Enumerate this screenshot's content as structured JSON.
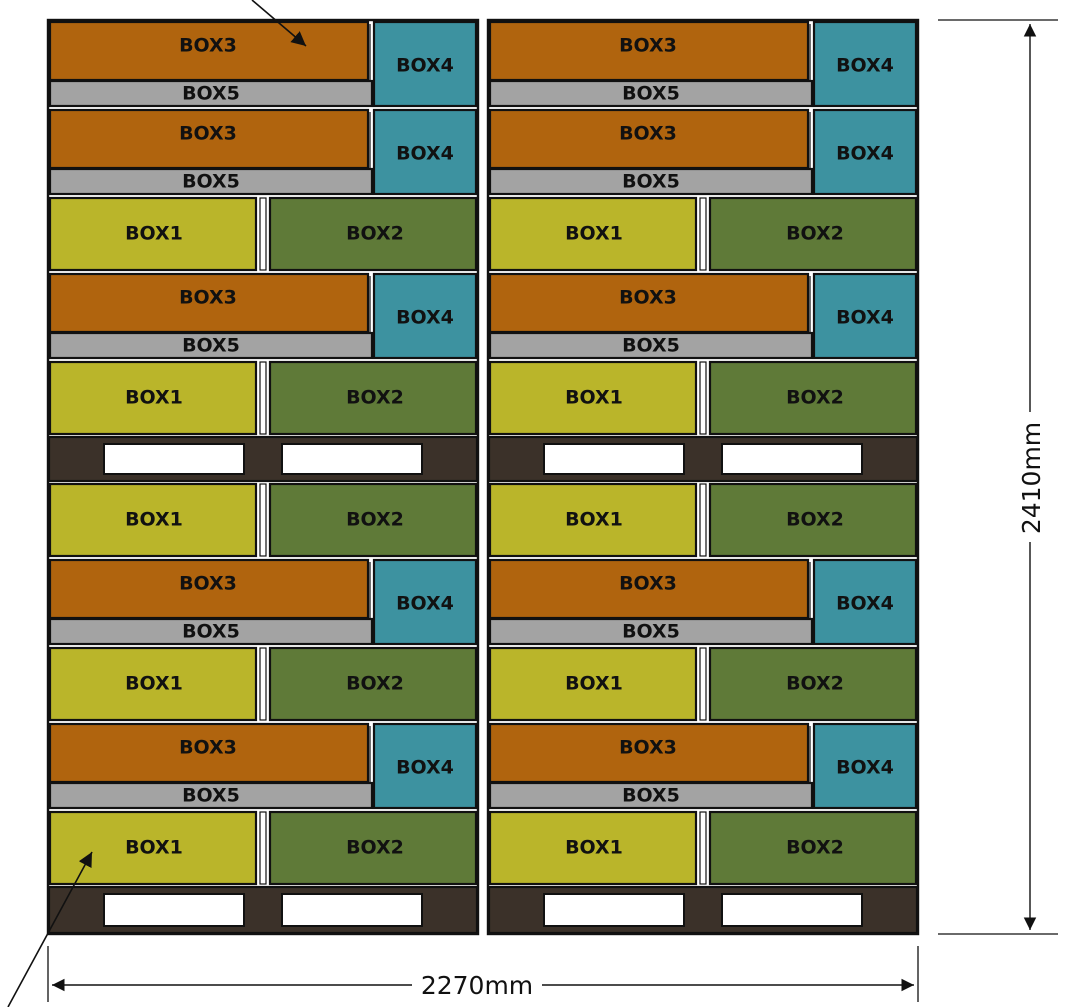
{
  "dimensions": {
    "width_label": "2270mm",
    "height_label": "2410mm"
  },
  "legend": {
    "box1": {
      "label": "BOX1",
      "color": "#bab52a"
    },
    "box2": {
      "label": "BOX2",
      "color": "#5f7a38"
    },
    "box3": {
      "label": "BOX3",
      "color": "#b0640e"
    },
    "box4": {
      "label": "BOX4",
      "color": "#3d92a0"
    },
    "box5": {
      "label": "BOX5",
      "color": "#a3a3a3"
    },
    "pallet": {
      "color": "#3b3129"
    }
  },
  "stacks": [
    {
      "name": "left-stack",
      "layers": [
        "A",
        "A",
        "B",
        "A",
        "B",
        "P",
        "B",
        "A",
        "B",
        "A",
        "B",
        "P"
      ]
    },
    {
      "name": "right-stack",
      "layers": [
        "A",
        "A",
        "B",
        "A",
        "B",
        "P",
        "B",
        "A",
        "B",
        "A",
        "B",
        "P"
      ]
    }
  ]
}
